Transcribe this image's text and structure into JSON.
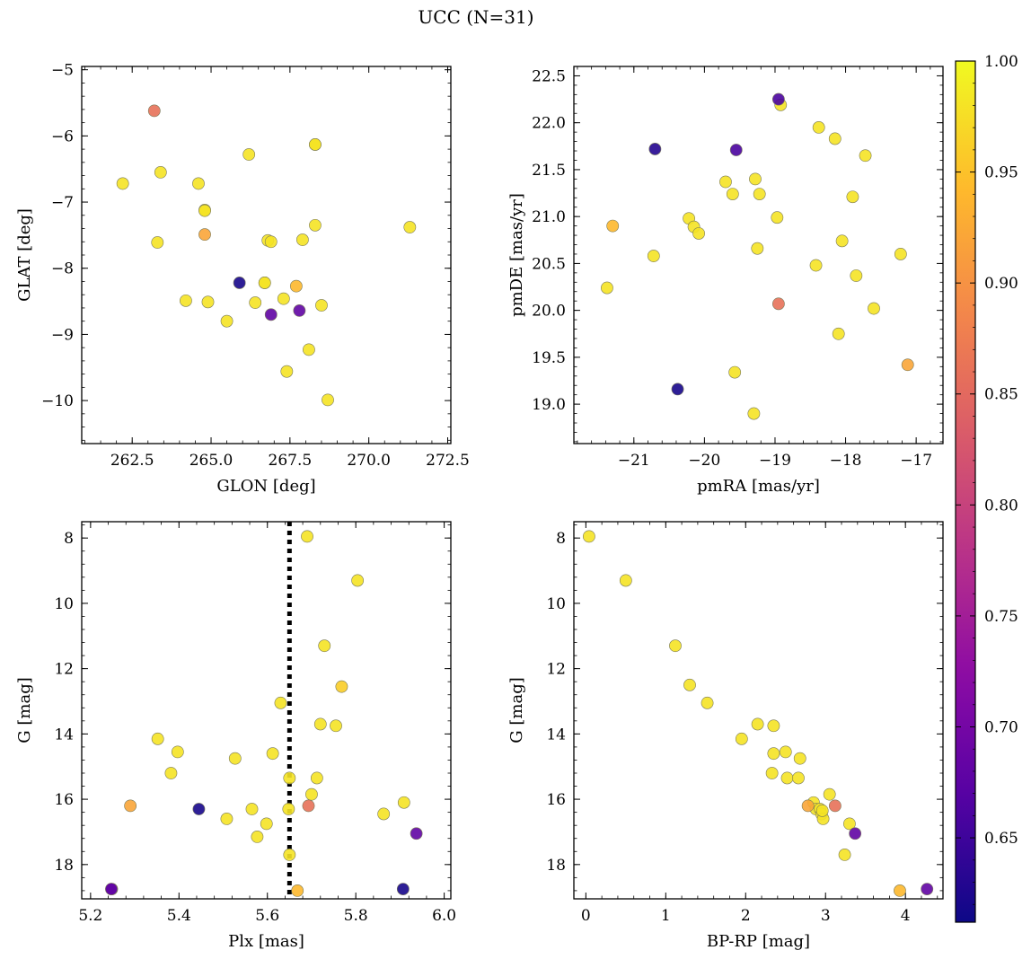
{
  "figure": {
    "title": "UCC (N=31)"
  },
  "colorbar": {
    "min": 0.612,
    "max": 1.0,
    "ticks": [
      0.65,
      0.7,
      0.75,
      0.8,
      0.85,
      0.9,
      0.95,
      1.0
    ],
    "tick_labels": [
      "0.65",
      "0.70",
      "0.75",
      "0.80",
      "0.85",
      "0.90",
      "0.95",
      "1.00"
    ],
    "colormap": "plasma"
  },
  "chart_data": [
    {
      "type": "scatter",
      "id": "glon_glat",
      "xlabel": "GLON [deg]",
      "ylabel": "GLAT [deg]",
      "xlim": [
        260.9,
        272.6
      ],
      "ylim": [
        -10.65,
        -4.95
      ],
      "y_inverted": false,
      "xticks": [
        262.5,
        265.0,
        267.5,
        270.0,
        272.5
      ],
      "xtick_labels": [
        "262.5",
        "265.0",
        "267.5",
        "270.0",
        "272.5"
      ],
      "yticks": [
        -10,
        -9,
        -8,
        -7,
        -6,
        -5
      ],
      "ytick_labels": [
        "−10",
        "−9",
        "−8",
        "−7",
        "−6",
        "−5"
      ],
      "x": [
        263.2,
        262.2,
        263.4,
        264.6,
        264.8,
        264.8,
        266.2,
        268.3,
        268.3,
        263.3,
        264.8,
        266.8,
        266.9,
        267.9,
        268.3,
        271.3,
        265.9,
        266.7,
        266.7,
        267.7,
        264.2,
        264.9,
        266.4,
        267.3,
        266.9,
        267.8,
        268.5,
        265.5,
        268.1,
        267.4,
        268.7
      ],
      "y": [
        -5.62,
        -6.72,
        -6.55,
        -6.72,
        -7.12,
        -7.13,
        -6.28,
        -6.13,
        -6.13,
        -7.61,
        -7.49,
        -7.58,
        -7.6,
        -7.57,
        -7.35,
        -7.38,
        -8.22,
        -8.22,
        -8.22,
        -8.27,
        -8.49,
        -8.51,
        -8.52,
        -8.46,
        -8.7,
        -8.64,
        -8.56,
        -8.8,
        -9.23,
        -9.56,
        -9.99
      ],
      "prob": [
        0.86,
        0.98,
        0.98,
        0.98,
        0.98,
        0.98,
        0.98,
        0.98,
        0.98,
        0.98,
        0.92,
        0.98,
        0.98,
        0.98,
        0.98,
        0.98,
        0.62,
        0.98,
        0.98,
        0.94,
        0.98,
        0.98,
        0.98,
        0.98,
        0.68,
        0.68,
        0.98,
        0.98,
        0.98,
        0.98,
        0.98
      ]
    },
    {
      "type": "scatter",
      "id": "pmra_pmde",
      "xlabel": "pmRA [mas/yr]",
      "ylabel": "pmDE [mas/yr]",
      "xlim": [
        -21.85,
        -16.62
      ],
      "ylim": [
        18.58,
        22.6
      ],
      "y_inverted": false,
      "xticks": [
        -21,
        -20,
        -19,
        -18,
        -17
      ],
      "xtick_labels": [
        "−21",
        "−20",
        "−19",
        "−18",
        "−17"
      ],
      "yticks": [
        19.0,
        19.5,
        20.0,
        20.5,
        21.0,
        21.5,
        22.0,
        22.5
      ],
      "ytick_labels": [
        "19.0",
        "19.5",
        "20.0",
        "20.5",
        "21.0",
        "21.5",
        "22.0",
        "22.5"
      ],
      "x": [
        -18.95,
        -18.92,
        -18.38,
        -18.15,
        -17.72,
        -20.7,
        -19.55,
        -19.7,
        -19.28,
        -19.6,
        -19.22,
        -20.22,
        -20.15,
        -20.08,
        -18.97,
        -17.9,
        -21.3,
        -18.05,
        -20.72,
        -19.25,
        -17.22,
        -18.42,
        -17.85,
        -21.38,
        -18.95,
        -17.6,
        -18.1,
        -17.12,
        -19.57,
        -20.38,
        -19.3
      ],
      "y": [
        22.25,
        22.19,
        21.95,
        21.83,
        21.65,
        21.72,
        21.71,
        21.37,
        21.4,
        21.24,
        21.24,
        20.98,
        20.89,
        20.82,
        20.99,
        21.21,
        20.9,
        20.74,
        20.58,
        20.66,
        20.6,
        20.48,
        20.37,
        20.24,
        20.07,
        20.02,
        19.75,
        19.42,
        19.34,
        19.16,
        18.9
      ],
      "prob": [
        0.66,
        0.98,
        0.98,
        0.98,
        0.98,
        0.63,
        0.66,
        0.98,
        0.98,
        0.98,
        0.98,
        0.98,
        0.98,
        0.98,
        0.98,
        0.98,
        0.94,
        0.98,
        0.98,
        0.98,
        0.98,
        0.98,
        0.98,
        0.98,
        0.86,
        0.98,
        0.98,
        0.92,
        0.98,
        0.62,
        0.98
      ]
    },
    {
      "type": "scatter",
      "id": "plx_g",
      "xlabel": "Plx [mas]",
      "ylabel": "G [mag]",
      "xlim": [
        5.18,
        6.015
      ],
      "ylim": [
        19.05,
        7.5
      ],
      "y_inverted": true,
      "xticks": [
        5.2,
        5.4,
        5.6,
        5.8,
        6.0
      ],
      "xtick_labels": [
        "5.2",
        "5.4",
        "5.6",
        "5.8",
        "6.0"
      ],
      "yticks": [
        8,
        10,
        12,
        14,
        16,
        18
      ],
      "ytick_labels": [
        "8",
        "10",
        "12",
        "14",
        "16",
        "18"
      ],
      "vline": 5.65,
      "x": [
        5.69,
        5.804,
        5.729,
        5.768,
        5.63,
        5.72,
        5.755,
        5.352,
        5.397,
        5.612,
        5.527,
        5.382,
        5.65,
        5.712,
        5.7,
        5.909,
        5.29,
        5.693,
        5.445,
        5.565,
        5.648,
        5.863,
        5.508,
        5.598,
        5.577,
        5.937,
        5.65,
        5.248,
        5.668,
        5.907,
        5.247
      ],
      "y": [
        7.95,
        9.3,
        11.3,
        12.55,
        13.05,
        13.7,
        13.75,
        14.15,
        14.55,
        14.6,
        14.75,
        15.2,
        15.35,
        15.35,
        15.85,
        16.1,
        16.2,
        16.2,
        16.3,
        16.3,
        16.3,
        16.45,
        16.6,
        16.75,
        17.15,
        17.05,
        17.7,
        18.75,
        18.8,
        18.75,
        18.75
      ],
      "prob": [
        0.98,
        0.98,
        0.98,
        0.96,
        0.98,
        0.98,
        0.98,
        0.98,
        0.98,
        0.98,
        0.98,
        0.98,
        0.98,
        0.98,
        0.98,
        0.98,
        0.92,
        0.86,
        0.62,
        0.98,
        0.98,
        0.98,
        0.98,
        0.98,
        0.98,
        0.68,
        0.98,
        0.68,
        0.94,
        0.62,
        0.68
      ]
    },
    {
      "type": "scatter",
      "id": "bprp_g",
      "xlabel": "BP-RP [mag]",
      "ylabel": "G [mag]",
      "xlim": [
        -0.15,
        4.47
      ],
      "ylim": [
        19.05,
        7.5
      ],
      "y_inverted": true,
      "xticks": [
        0,
        1,
        2,
        3,
        4
      ],
      "xtick_labels": [
        "0",
        "1",
        "2",
        "3",
        "4"
      ],
      "yticks": [
        8,
        10,
        12,
        14,
        16,
        18
      ],
      "ytick_labels": [
        "8",
        "10",
        "12",
        "14",
        "16",
        "18"
      ],
      "x": [
        0.04,
        0.5,
        1.12,
        1.3,
        1.52,
        1.95,
        2.15,
        2.35,
        2.35,
        2.5,
        2.68,
        2.33,
        2.52,
        2.66,
        3.05,
        2.85,
        2.78,
        3.12,
        2.88,
        2.93,
        2.95,
        2.97,
        2.96,
        3.3,
        3.37,
        3.24,
        3.93,
        4.27
      ],
      "y": [
        7.95,
        9.3,
        11.3,
        12.5,
        13.05,
        14.15,
        13.7,
        13.75,
        14.6,
        14.55,
        14.75,
        15.2,
        15.35,
        15.35,
        15.85,
        16.1,
        16.2,
        16.2,
        16.3,
        16.3,
        16.45,
        16.6,
        16.35,
        16.75,
        17.05,
        17.7,
        18.8,
        18.75
      ],
      "prob": [
        0.98,
        0.98,
        0.98,
        0.98,
        0.98,
        0.98,
        0.98,
        0.98,
        0.98,
        0.98,
        0.98,
        0.98,
        0.98,
        0.98,
        0.98,
        0.98,
        0.92,
        0.86,
        0.98,
        0.98,
        0.98,
        0.98,
        0.98,
        0.98,
        0.68,
        0.98,
        0.94,
        0.68
      ]
    }
  ]
}
